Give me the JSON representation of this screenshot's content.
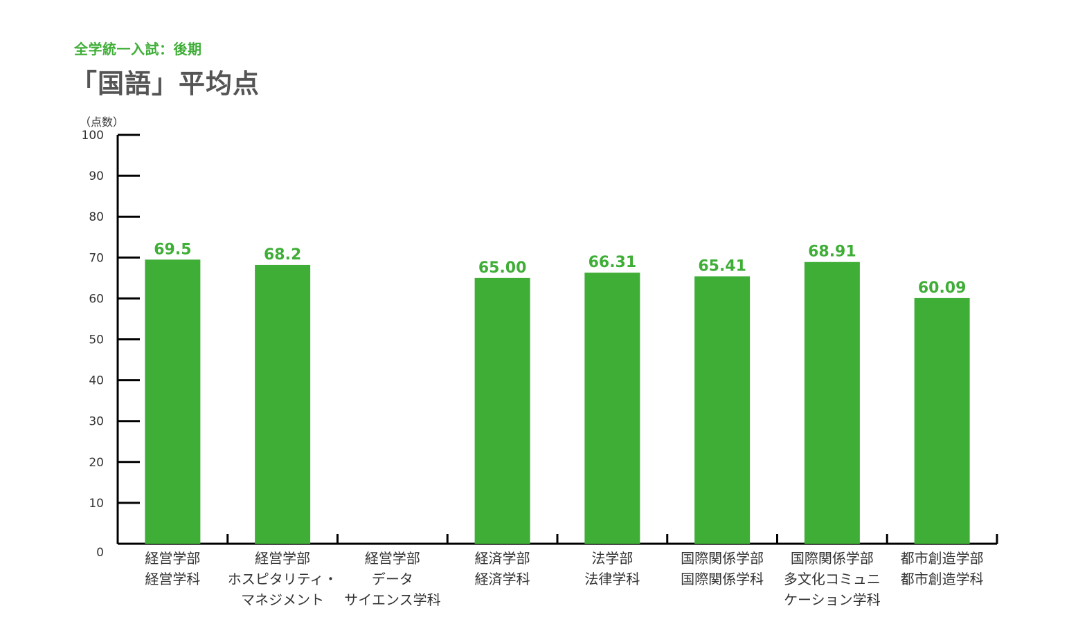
{
  "subtitle": "全学統一入試：後期",
  "title": "「国語」平均点",
  "chart_data": {
    "type": "bar",
    "title": "「国語」平均点",
    "subtitle": "全学統一入試：後期",
    "ylabel": "（点数）",
    "ylim": [
      0,
      100
    ],
    "yticks": [
      0,
      10,
      20,
      30,
      40,
      50,
      60,
      70,
      80,
      90,
      100
    ],
    "bar_color": "#3fae37",
    "categories": [
      [
        "経営学部",
        "経営学科"
      ],
      [
        "経営学部",
        "ホスピタリティ・",
        "マネジメント"
      ],
      [
        "経営学部",
        "データ",
        "サイエンス学科"
      ],
      [
        "経済学部",
        "経済学科"
      ],
      [
        "法学部",
        "法律学科"
      ],
      [
        "国際関係学部",
        "国際関係学科"
      ],
      [
        "国際関係学部",
        "多文化コミュニ",
        "ケーション学科"
      ],
      [
        "都市創造学部",
        "都市創造学科"
      ]
    ],
    "values": [
      69.5,
      68.2,
      null,
      65.0,
      66.31,
      65.41,
      68.91,
      60.09
    ],
    "value_labels": [
      "69.5",
      "68.2",
      "",
      "65.00",
      "66.31",
      "65.41",
      "68.91",
      "60.09"
    ]
  }
}
